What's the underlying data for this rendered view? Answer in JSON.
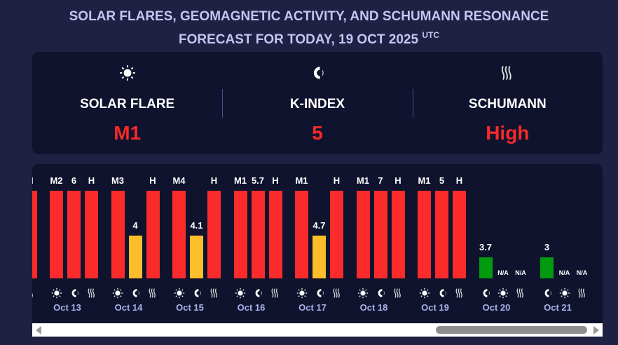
{
  "header": {
    "title_line1": "SOLAR FLARES, GEOMAGNETIC ACTIVITY, AND SCHUMANN RESONANCE",
    "title_line2": "FORECAST FOR TODAY, 19 OCT 2025",
    "title_sup": "UTC"
  },
  "summary": [
    {
      "icon": "sun-icon",
      "label": "SOLAR FLARE",
      "value": "M1"
    },
    {
      "icon": "magnet-icon",
      "label": "K-INDEX",
      "value": "5"
    },
    {
      "icon": "waves-icon",
      "label": "SCHUMANN",
      "value": "High"
    }
  ],
  "colors": {
    "high": "#fb2b2b",
    "moderate": "#fdbe2b",
    "low": "#029a10",
    "value": "#f52a2a"
  },
  "chart_data": {
    "type": "bar",
    "levels": {
      "high": 1,
      "moderate": 0.49,
      "low": 0.24
    },
    "groups": [
      {
        "date": "",
        "partial": true,
        "bars": [
          {
            "kind": "flare",
            "label": "",
            "level": "high"
          },
          {
            "kind": "kindex",
            "label": "",
            "level": "high"
          },
          {
            "kind": "schumann",
            "label": "H",
            "level": "high"
          }
        ]
      },
      {
        "date": "Oct 13",
        "bars": [
          {
            "kind": "flare",
            "label": "M2",
            "level": "high"
          },
          {
            "kind": "kindex",
            "label": "6",
            "level": "high"
          },
          {
            "kind": "schumann",
            "label": "H",
            "level": "high"
          }
        ]
      },
      {
        "date": "Oct 14",
        "bars": [
          {
            "kind": "flare",
            "label": "M3",
            "level": "high"
          },
          {
            "kind": "kindex",
            "label": "4",
            "level": "moderate"
          },
          {
            "kind": "schumann",
            "label": "H",
            "level": "high"
          }
        ]
      },
      {
        "date": "Oct 15",
        "bars": [
          {
            "kind": "flare",
            "label": "M4",
            "level": "high"
          },
          {
            "kind": "kindex",
            "label": "4.1",
            "level": "moderate"
          },
          {
            "kind": "schumann",
            "label": "H",
            "level": "high"
          }
        ]
      },
      {
        "date": "Oct 16",
        "bars": [
          {
            "kind": "flare",
            "label": "M1",
            "level": "high"
          },
          {
            "kind": "kindex",
            "label": "5.7",
            "level": "high"
          },
          {
            "kind": "schumann",
            "label": "H",
            "level": "high"
          }
        ]
      },
      {
        "date": "Oct 17",
        "bars": [
          {
            "kind": "flare",
            "label": "M1",
            "level": "high"
          },
          {
            "kind": "kindex",
            "label": "4.7",
            "level": "moderate"
          },
          {
            "kind": "schumann",
            "label": "H",
            "level": "high"
          }
        ]
      },
      {
        "date": "Oct 18",
        "bars": [
          {
            "kind": "flare",
            "label": "M1",
            "level": "high"
          },
          {
            "kind": "kindex",
            "label": "7",
            "level": "high"
          },
          {
            "kind": "schumann",
            "label": "H",
            "level": "high"
          }
        ]
      },
      {
        "date": "Oct 19",
        "bars": [
          {
            "kind": "flare",
            "label": "M1",
            "level": "high"
          },
          {
            "kind": "kindex",
            "label": "5",
            "level": "high"
          },
          {
            "kind": "schumann",
            "label": "H",
            "level": "high"
          }
        ]
      },
      {
        "date": "Oct 20",
        "bars": [
          {
            "kind": "kindex",
            "label": "3.7",
            "level": "low"
          },
          {
            "kind": "flare",
            "label": "N/A",
            "level": null
          },
          {
            "kind": "schumann",
            "label": "N/A",
            "level": null
          }
        ]
      },
      {
        "date": "Oct 21",
        "bars": [
          {
            "kind": "kindex",
            "label": "3",
            "level": "low"
          },
          {
            "kind": "flare",
            "label": "N/A",
            "level": null
          },
          {
            "kind": "schumann",
            "label": "N/A",
            "level": null
          }
        ]
      }
    ]
  }
}
